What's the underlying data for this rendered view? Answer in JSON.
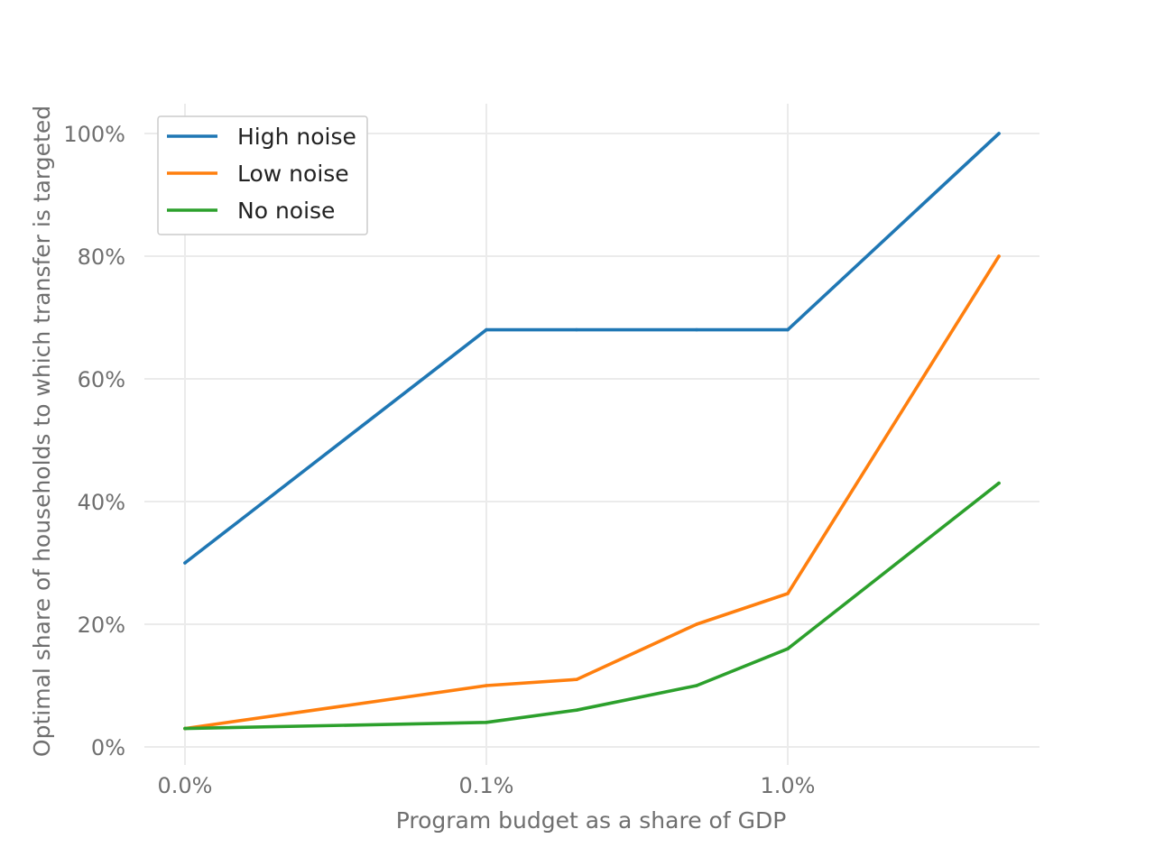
{
  "chart_data": {
    "type": "line",
    "title": "",
    "xlabel": "Program budget as a share of GDP",
    "ylabel": "Optimal share of households to which transfer is targeted",
    "x_axis": {
      "scale": "log",
      "ticks": [
        {
          "value": 0.01,
          "label": "0.0%"
        },
        {
          "value": 0.1,
          "label": "0.1%"
        },
        {
          "value": 1.0,
          "label": "1.0%"
        }
      ]
    },
    "y_axis": {
      "ylim": [
        0,
        100
      ],
      "ticks": [
        {
          "value": 0,
          "label": "0%"
        },
        {
          "value": 20,
          "label": "20%"
        },
        {
          "value": 40,
          "label": "40%"
        },
        {
          "value": 60,
          "label": "60%"
        },
        {
          "value": 80,
          "label": "80%"
        },
        {
          "value": 100,
          "label": "100%"
        }
      ]
    },
    "x": [
      0.01,
      0.1,
      0.2,
      0.5,
      1.0,
      5.0
    ],
    "series": [
      {
        "name": "High noise",
        "color": "#1f77b4",
        "values": [
          30,
          68,
          68,
          68,
          68,
          100
        ]
      },
      {
        "name": "Low noise",
        "color": "#ff7f0e",
        "values": [
          3,
          10,
          11,
          20,
          25,
          80
        ]
      },
      {
        "name": "No noise",
        "color": "#2ca02c",
        "values": [
          3,
          4,
          6,
          10,
          16,
          43
        ]
      }
    ],
    "grid": true,
    "legend_position": "top-left"
  }
}
